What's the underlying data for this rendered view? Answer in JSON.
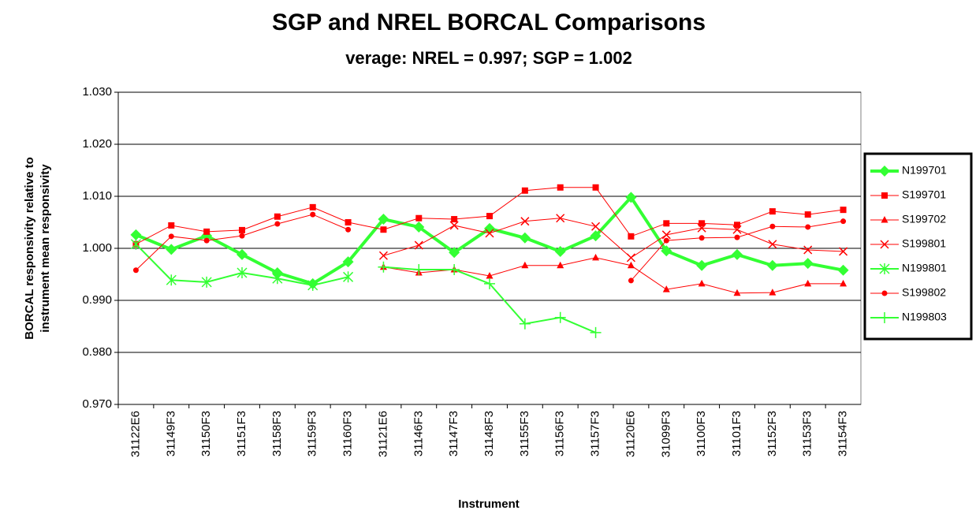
{
  "chart_data": {
    "type": "line",
    "title": "SGP and NREL BORCAL Comparisons",
    "subtitle": "verage: NREL = 0.997; SGP = 1.002",
    "y_label": [
      "BORCAL responsivity relative to",
      "instrument mean responsivity"
    ],
    "x_label": "Instrument",
    "categories": [
      "31122E6",
      "31149F3",
      "31150F3",
      "31151F3",
      "31158F3",
      "31159F3",
      "31160F3",
      "31121E6",
      "31146F3",
      "31147F3",
      "31148F3",
      "31155F3",
      "31156F3",
      "31157F3",
      "31120E6",
      "31099F3",
      "31100F3",
      "31101F3",
      "31152F3",
      "31153F3",
      "31154F3"
    ],
    "ylim": [
      0.97,
      1.03
    ],
    "yticks": [
      {
        "value": 0.97,
        "label": "0.970"
      },
      {
        "value": 0.98,
        "label": "0.980"
      },
      {
        "value": 0.99,
        "label": "0.990"
      },
      {
        "value": 1.0,
        "label": "1.000"
      },
      {
        "value": 1.01,
        "label": "1.010"
      },
      {
        "value": 1.02,
        "label": "1.020"
      },
      {
        "value": 1.03,
        "label": "1.030"
      }
    ],
    "grid": true,
    "legend": "right",
    "series": [
      {
        "name": "N199701",
        "color": "#33ff33",
        "marker": "diamond",
        "line_width": 4,
        "values": [
          1.0026,
          0.9998,
          1.0024,
          0.9988,
          0.9953,
          0.9932,
          0.9974,
          1.0056,
          1.0041,
          0.9992,
          1.0038,
          1.002,
          0.9994,
          1.0024,
          1.0098,
          0.9995,
          0.9967,
          0.9988,
          0.9967,
          0.9971,
          0.9958
        ]
      },
      {
        "name": "S199701",
        "color": "#ff0000",
        "marker": "square",
        "line_width": 1,
        "values": [
          1.0008,
          1.0044,
          1.0032,
          1.0035,
          1.0061,
          1.0079,
          1.005,
          1.0036,
          1.0058,
          1.0056,
          1.0062,
          1.0111,
          1.0117,
          1.0117,
          1.0023,
          1.0048,
          1.0048,
          1.0045,
          1.0071,
          1.0065,
          1.0074
        ]
      },
      {
        "name": "S199702",
        "color": "#ff0000",
        "marker": "triangle",
        "line_width": 1,
        "values": [
          1.0008,
          null,
          null,
          null,
          null,
          null,
          null,
          0.9964,
          0.9953,
          0.9959,
          0.9947,
          0.9967,
          0.9967,
          0.9982,
          0.9967,
          0.9921,
          0.9932,
          0.9914,
          0.9915,
          0.9932,
          0.9932
        ]
      },
      {
        "name": "S199801",
        "color": "#ff0000",
        "marker": "x",
        "line_width": 1,
        "values": [
          null,
          null,
          null,
          null,
          null,
          null,
          null,
          0.9986,
          1.0006,
          1.0044,
          1.0029,
          1.0052,
          1.0058,
          1.0042,
          0.9982,
          1.0026,
          1.0039,
          1.0036,
          1.0008,
          0.9997,
          0.9994
        ]
      },
      {
        "name": "N199801",
        "color": "#33ff33",
        "marker": "asterisk",
        "line_width": 2,
        "values": [
          1.0008,
          0.9939,
          0.9935,
          0.9953,
          0.9942,
          0.9929,
          0.9945,
          null,
          null,
          null,
          null,
          null,
          null,
          null,
          null,
          null,
          null,
          null,
          null,
          null,
          null
        ]
      },
      {
        "name": "S199802",
        "color": "#ff0000",
        "marker": "circle",
        "line_width": 1,
        "values": [
          0.9958,
          1.0023,
          1.0015,
          1.0024,
          1.0047,
          1.0065,
          1.0036,
          null,
          null,
          null,
          null,
          null,
          null,
          null,
          0.9938,
          1.0015,
          1.002,
          1.0021,
          1.0042,
          1.0041,
          1.0052
        ]
      },
      {
        "name": "N199803",
        "color": "#33ff33",
        "marker": "plus",
        "line_width": 2,
        "values": [
          null,
          null,
          null,
          null,
          null,
          null,
          null,
          0.9964,
          0.9959,
          0.9959,
          0.9932,
          0.9855,
          0.9867,
          0.9838,
          null,
          null,
          null,
          null,
          null,
          null,
          null
        ]
      }
    ]
  }
}
